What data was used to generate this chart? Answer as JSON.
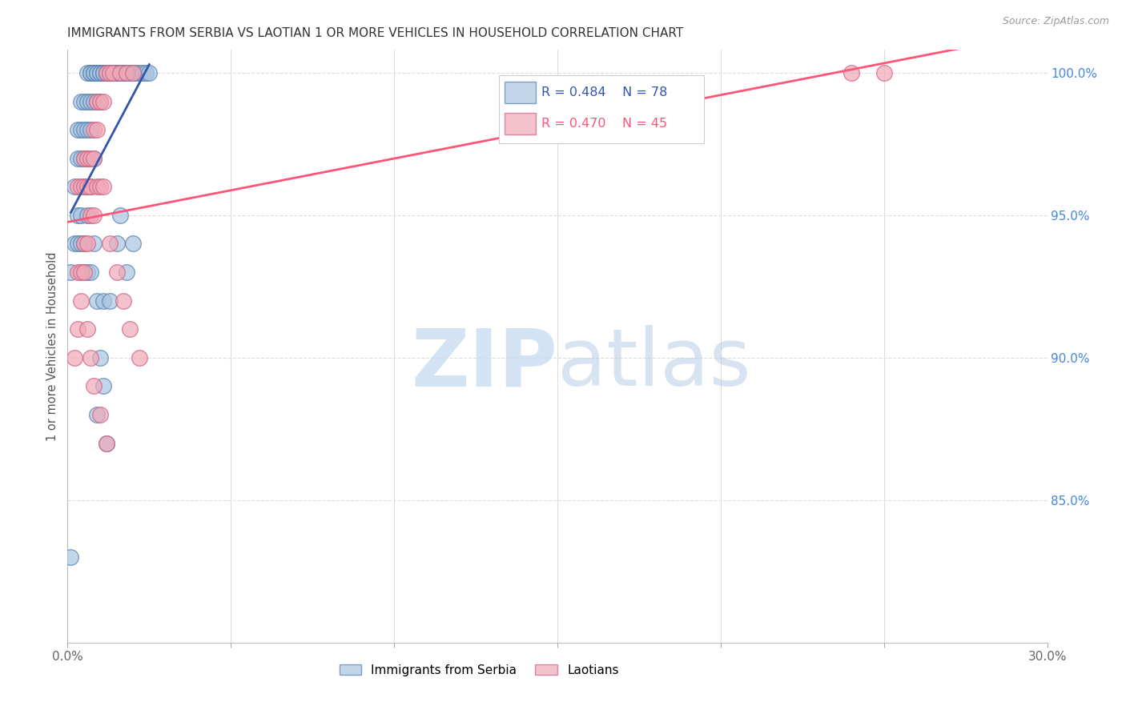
{
  "title": "IMMIGRANTS FROM SERBIA VS LAOTIAN 1 OR MORE VEHICLES IN HOUSEHOLD CORRELATION CHART",
  "source": "Source: ZipAtlas.com",
  "ylabel": "1 or more Vehicles in Household",
  "xlim": [
    0.0,
    0.3
  ],
  "ylim": [
    0.8,
    1.008
  ],
  "xtick_positions": [
    0.0,
    0.05,
    0.1,
    0.15,
    0.2,
    0.25,
    0.3
  ],
  "xtick_labels": [
    "0.0%",
    "",
    "",
    "",
    "",
    "",
    "30.0%"
  ],
  "ytick_positions": [
    0.85,
    0.9,
    0.95,
    1.0
  ],
  "ytick_labels": [
    "85.0%",
    "90.0%",
    "95.0%",
    "100.0%"
  ],
  "legend_r_serbia": "0.484",
  "legend_n_serbia": "78",
  "legend_r_laotian": "0.470",
  "legend_n_laotian": "45",
  "serbia_face_color": "#A8C4E0",
  "serbia_edge_color": "#5580B0",
  "laotian_face_color": "#F0A8B8",
  "laotian_edge_color": "#D06080",
  "serbia_line_color": "#3355AA",
  "laotian_line_color": "#FF5577",
  "legend_serbia_box_color": "#A8C4E0",
  "legend_laotian_box_color": "#F0A8B8",
  "ytick_color": "#4488DD",
  "serbia_x": [
    0.002,
    0.003,
    0.003,
    0.004,
    0.004,
    0.004,
    0.005,
    0.005,
    0.005,
    0.006,
    0.006,
    0.006,
    0.007,
    0.007,
    0.007,
    0.007,
    0.008,
    0.008,
    0.008,
    0.009,
    0.009,
    0.009,
    0.01,
    0.01,
    0.01,
    0.011,
    0.011,
    0.011,
    0.012,
    0.012,
    0.012,
    0.013,
    0.013,
    0.013,
    0.014,
    0.014,
    0.015,
    0.015,
    0.016,
    0.016,
    0.017,
    0.017,
    0.018,
    0.019,
    0.02,
    0.021,
    0.022,
    0.023,
    0.024,
    0.025,
    0.001,
    0.002,
    0.003,
    0.003,
    0.004,
    0.004,
    0.005,
    0.005,
    0.005,
    0.006,
    0.006,
    0.006,
    0.007,
    0.007,
    0.008,
    0.008,
    0.009,
    0.009,
    0.01,
    0.011,
    0.011,
    0.012,
    0.013,
    0.015,
    0.016,
    0.018,
    0.02,
    0.001
  ],
  "serbia_y": [
    0.96,
    0.97,
    0.98,
    0.97,
    0.98,
    0.99,
    0.97,
    0.98,
    0.99,
    0.98,
    0.99,
    1.0,
    0.98,
    0.99,
    1.0,
    1.0,
    0.99,
    1.0,
    1.0,
    0.99,
    1.0,
    1.0,
    0.99,
    1.0,
    1.0,
    1.0,
    1.0,
    1.0,
    1.0,
    1.0,
    1.0,
    1.0,
    1.0,
    1.0,
    1.0,
    1.0,
    1.0,
    1.0,
    1.0,
    1.0,
    1.0,
    1.0,
    1.0,
    1.0,
    1.0,
    1.0,
    1.0,
    1.0,
    1.0,
    1.0,
    0.93,
    0.94,
    0.94,
    0.95,
    0.94,
    0.95,
    0.93,
    0.94,
    0.96,
    0.93,
    0.95,
    0.97,
    0.93,
    0.96,
    0.94,
    0.97,
    0.88,
    0.92,
    0.9,
    0.89,
    0.92,
    0.87,
    0.92,
    0.94,
    0.95,
    0.93,
    0.94,
    0.83
  ],
  "laotian_x": [
    0.003,
    0.004,
    0.005,
    0.005,
    0.006,
    0.006,
    0.007,
    0.007,
    0.008,
    0.008,
    0.009,
    0.009,
    0.01,
    0.011,
    0.012,
    0.013,
    0.014,
    0.016,
    0.018,
    0.02,
    0.003,
    0.004,
    0.005,
    0.006,
    0.007,
    0.008,
    0.009,
    0.01,
    0.011,
    0.013,
    0.015,
    0.017,
    0.019,
    0.022,
    0.002,
    0.003,
    0.004,
    0.005,
    0.006,
    0.007,
    0.008,
    0.01,
    0.012,
    0.24,
    0.25
  ],
  "laotian_y": [
    0.96,
    0.96,
    0.96,
    0.97,
    0.96,
    0.97,
    0.96,
    0.97,
    0.97,
    0.98,
    0.98,
    0.99,
    0.99,
    0.99,
    1.0,
    1.0,
    1.0,
    1.0,
    1.0,
    1.0,
    0.93,
    0.93,
    0.94,
    0.94,
    0.95,
    0.95,
    0.96,
    0.96,
    0.96,
    0.94,
    0.93,
    0.92,
    0.91,
    0.9,
    0.9,
    0.91,
    0.92,
    0.93,
    0.91,
    0.9,
    0.89,
    0.88,
    0.87,
    1.0,
    1.0
  ]
}
